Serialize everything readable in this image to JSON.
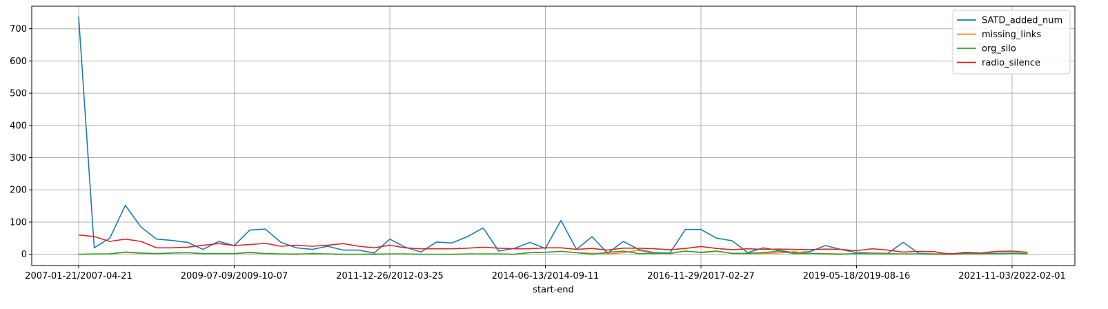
{
  "chart_data": {
    "type": "line",
    "title": "",
    "xlabel": "start-end",
    "ylabel": "",
    "ylim": [
      -35,
      770
    ],
    "y_ticks": [
      0,
      100,
      200,
      300,
      400,
      500,
      600,
      700
    ],
    "grid": true,
    "legend_position": "top-right",
    "x_tick_labels": [
      {
        "index": 0,
        "label": "2007-01-21/2007-04-21"
      },
      {
        "index": 10,
        "label": "2009-07-09/2009-10-07"
      },
      {
        "index": 20,
        "label": "2011-12-26/2012-03-25"
      },
      {
        "index": 30,
        "label": "2014-06-13/2014-09-11"
      },
      {
        "index": 40,
        "label": "2016-11-29/2017-02-27"
      },
      {
        "index": 50,
        "label": "2019-05-18/2019-08-16"
      },
      {
        "index": 60,
        "label": "2021-11-03/2022-02-01"
      }
    ],
    "x_count": 62,
    "series": [
      {
        "name": "SATD_added_num",
        "color": "#1f77b4",
        "values": [
          738,
          20,
          50,
          152,
          85,
          47,
          43,
          37,
          15,
          40,
          27,
          75,
          78,
          37,
          20,
          15,
          25,
          13,
          13,
          4,
          47,
          22,
          7,
          38,
          35,
          55,
          82,
          10,
          18,
          37,
          18,
          105,
          15,
          55,
          3,
          40,
          15,
          5,
          4,
          77,
          77,
          50,
          42,
          5,
          20,
          12,
          5,
          8,
          27,
          15,
          5,
          4,
          3,
          37,
          3,
          1,
          2,
          3,
          4,
          3,
          4,
          2
        ]
      },
      {
        "name": "missing_links",
        "color": "#ff7f0e",
        "values": [
          0,
          1,
          1,
          6,
          3,
          2,
          4,
          5,
          2,
          2,
          2,
          5,
          2,
          1,
          1,
          1,
          1,
          0,
          0,
          1,
          1,
          1,
          0,
          0,
          0,
          1,
          1,
          1,
          0,
          5,
          6,
          9,
          5,
          3,
          1,
          5,
          12,
          3,
          2,
          10,
          5,
          9,
          3,
          2,
          3,
          4,
          8,
          2,
          2,
          1,
          1,
          3,
          2,
          1,
          1,
          1,
          0,
          1,
          1,
          1,
          3,
          1
        ]
      },
      {
        "name": "org_silo",
        "color": "#2ca02c",
        "values": [
          0,
          1,
          1,
          7,
          4,
          2,
          4,
          5,
          2,
          2,
          2,
          6,
          2,
          1,
          0,
          2,
          1,
          0,
          0,
          0,
          1,
          1,
          0,
          0,
          0,
          1,
          1,
          1,
          0,
          5,
          6,
          9,
          5,
          0,
          6,
          10,
          2,
          3,
          3,
          10,
          6,
          10,
          3,
          3,
          5,
          10,
          2,
          3,
          1,
          0,
          2,
          1,
          1,
          1,
          1,
          0,
          0,
          1,
          1,
          1,
          3,
          1
        ]
      },
      {
        "name": "radio_silence",
        "color": "#d62728",
        "values": [
          60,
          55,
          40,
          47,
          40,
          20,
          20,
          22,
          28,
          33,
          27,
          30,
          34,
          25,
          28,
          25,
          28,
          33,
          25,
          20,
          28,
          20,
          17,
          17,
          17,
          19,
          22,
          19,
          17,
          17,
          20,
          20,
          15,
          18,
          13,
          19,
          19,
          17,
          14,
          18,
          24,
          18,
          14,
          17,
          15,
          16,
          15,
          14,
          16,
          15,
          11,
          17,
          13,
          7,
          9,
          8,
          0,
          6,
          4,
          9,
          10,
          6
        ]
      }
    ]
  }
}
